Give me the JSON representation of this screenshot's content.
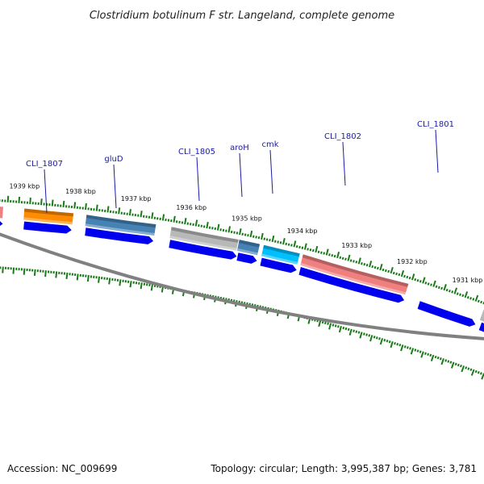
{
  "title": "Clostridium botulinum F str. Langeland, complete genome",
  "footer": {
    "accession": "Accession: NC_009699",
    "summary": "Topology: circular; Length: 3,995,387 bp; Genes: 3,781"
  },
  "ticks": [
    {
      "label": "1939 kbp"
    },
    {
      "label": "1938 kbp"
    },
    {
      "label": "1937 kbp"
    },
    {
      "label": "1936 kbp"
    },
    {
      "label": "1935 kbp"
    },
    {
      "label": "1934 kbp"
    },
    {
      "label": "1933 kbp"
    },
    {
      "label": "1932 kbp"
    },
    {
      "label": "1931 kbp"
    }
  ],
  "genes": [
    {
      "label": "CLI_1807",
      "color": "#ff8c00"
    },
    {
      "label": "gluD",
      "color": "#4682b4"
    },
    {
      "label": "CLI_1805",
      "color": "#b8b8b8"
    },
    {
      "label": "aroH",
      "color": "#4682b4"
    },
    {
      "label": "cmk",
      "color": "#00bfff"
    },
    {
      "label": "CLI_1802",
      "color": "#f08080"
    },
    {
      "label": "CLI_1801",
      "color": "#0000ff"
    }
  ],
  "colors": {
    "backbone": "#808080",
    "cds": "#0000ee",
    "tick": "#1a7a1a"
  }
}
